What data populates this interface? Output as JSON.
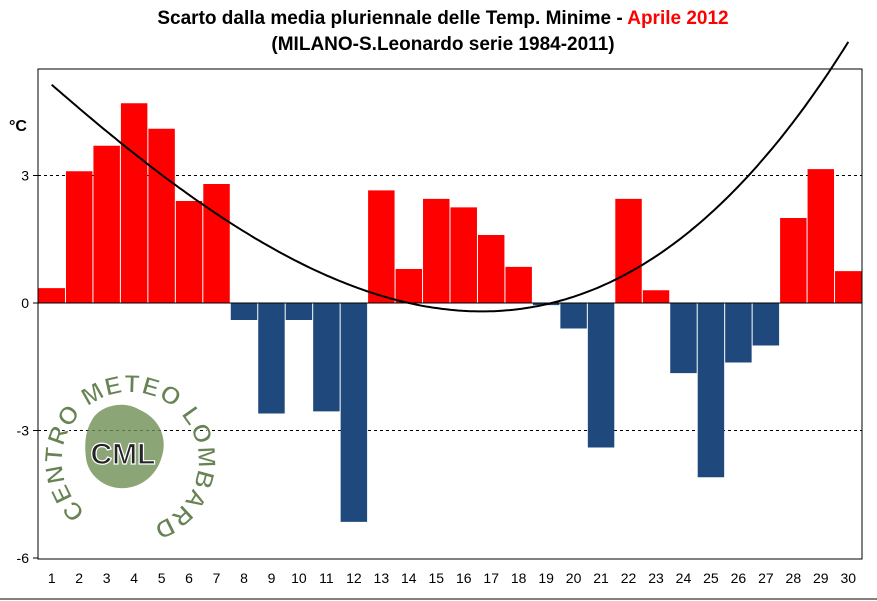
{
  "chart_data": {
    "type": "bar",
    "title": {
      "line1_prefix": "Scarto dalla media pluriennale delle Temp. Minime - ",
      "line1_highlight": "Aprile 2012",
      "line2": "(MILANO-S.Leonardo serie 1984-2011)"
    },
    "ylabel": "°C",
    "xlabel": "",
    "ylim": [
      -6,
      5.5
    ],
    "yticks": [
      3,
      0,
      -3,
      -6
    ],
    "grid": "dashed horizontal lines at 3 and -3",
    "categories": [
      "1",
      "2",
      "3",
      "4",
      "5",
      "6",
      "7",
      "8",
      "9",
      "10",
      "11",
      "12",
      "13",
      "14",
      "15",
      "16",
      "17",
      "18",
      "19",
      "20",
      "21",
      "22",
      "23",
      "24",
      "25",
      "26",
      "27",
      "28",
      "29",
      "30"
    ],
    "values": [
      0.35,
      3.1,
      3.7,
      4.7,
      4.1,
      2.4,
      2.8,
      -0.4,
      -2.6,
      -0.4,
      -2.55,
      -5.15,
      2.65,
      0.8,
      2.45,
      2.25,
      1.6,
      0.85,
      -0.05,
      -0.6,
      -3.4,
      2.45,
      0.3,
      -1.65,
      -4.1,
      -1.4,
      -1.0,
      2.0,
      3.15,
      0.75
    ],
    "trend": {
      "type": "polynomial",
      "coefficients": [
        5.7075,
        -0.5768,
        0.0054,
        0.000477
      ],
      "x_range": [
        1,
        30
      ],
      "color": "#000000"
    },
    "colors": {
      "positive": "#ff0000",
      "negative": "#1f497d",
      "highlight_title": "#ff0000",
      "logo_green": "#5f7d4a"
    },
    "logo": {
      "arc_text": "CENTRO METEO LOMBARDO",
      "center_text": "CML"
    }
  }
}
